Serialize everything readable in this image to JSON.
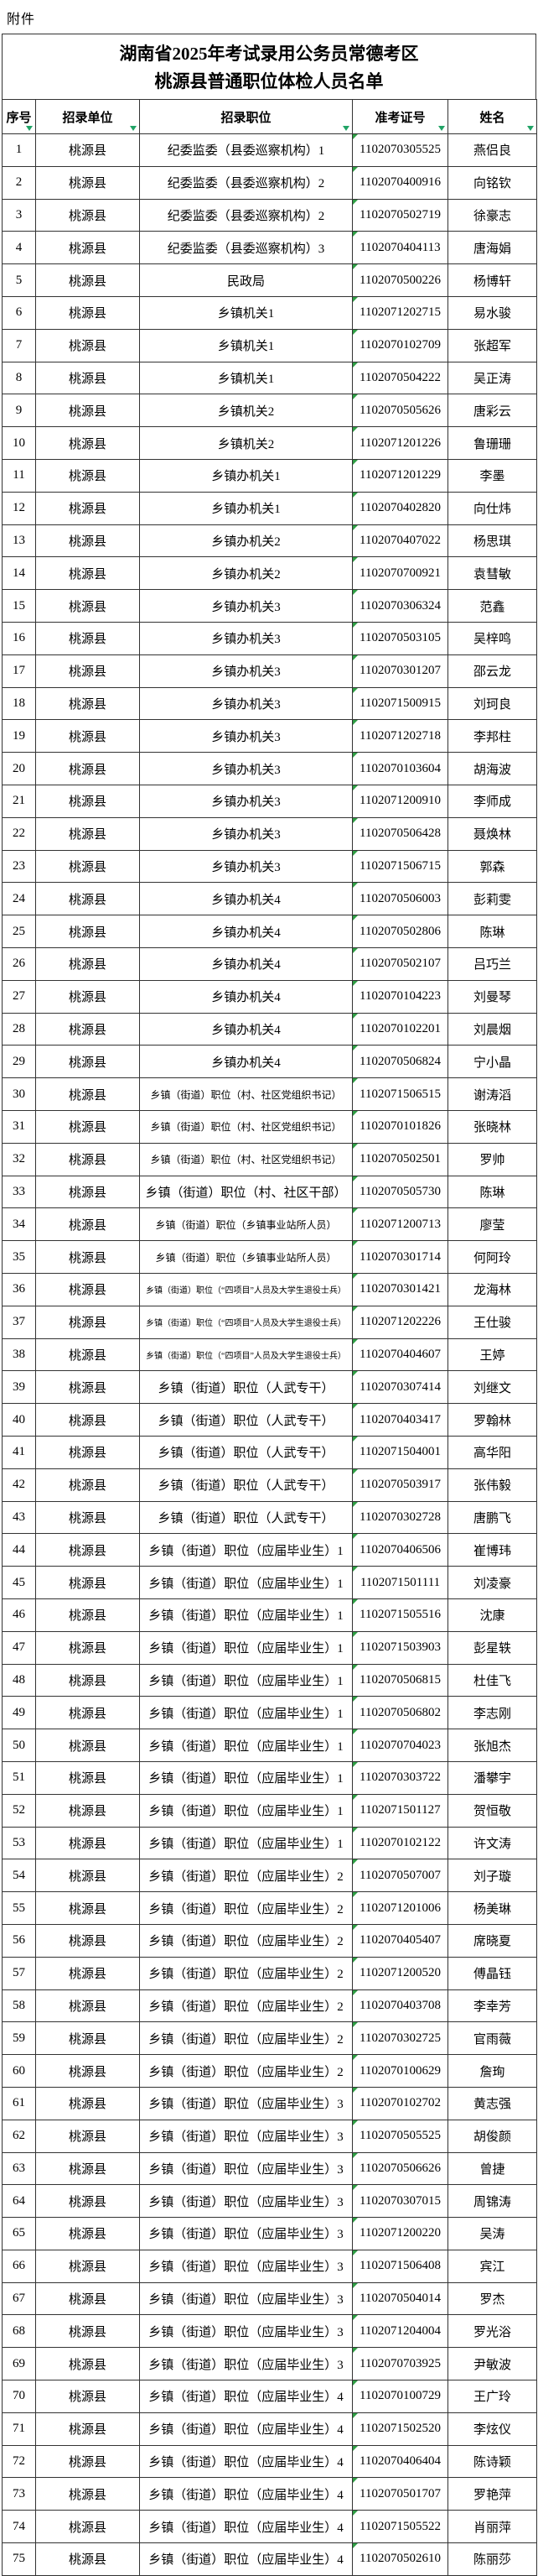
{
  "page": {
    "attachment_label": "附件"
  },
  "title": {
    "line1": "湖南省2025年考试录用公务员常德考区",
    "line2": "桃源县普通职位体检人员名单"
  },
  "colors": {
    "filter_arrow_green": "#21a366",
    "cell_corner_green": "#2f9e44",
    "grid_border": "#333333"
  },
  "table": {
    "columns": [
      {
        "key": "index",
        "label": "序号"
      },
      {
        "key": "unit",
        "label": "招录单位"
      },
      {
        "key": "position",
        "label": "招录职位"
      },
      {
        "key": "ticket",
        "label": "准考证号"
      },
      {
        "key": "name",
        "label": "姓名"
      }
    ],
    "small_rows": [
      30,
      31,
      32,
      34,
      35
    ],
    "xsmall_rows": [
      36,
      37,
      38
    ],
    "rows": [
      [
        1,
        "桃源县",
        "纪委监委（县委巡察机构）1",
        "1102070305525",
        "燕侣良"
      ],
      [
        2,
        "桃源县",
        "纪委监委（县委巡察机构）2",
        "1102070400916",
        "向铭钦"
      ],
      [
        3,
        "桃源县",
        "纪委监委（县委巡察机构）2",
        "1102070502719",
        "徐豪志"
      ],
      [
        4,
        "桃源县",
        "纪委监委（县委巡察机构）3",
        "1102070404113",
        "唐海娟"
      ],
      [
        5,
        "桃源县",
        "民政局",
        "1102070500226",
        "杨博轩"
      ],
      [
        6,
        "桃源县",
        "乡镇机关1",
        "1102071202715",
        "易水骏"
      ],
      [
        7,
        "桃源县",
        "乡镇机关1",
        "1102070102709",
        "张超军"
      ],
      [
        8,
        "桃源县",
        "乡镇机关1",
        "1102070504222",
        "吴正涛"
      ],
      [
        9,
        "桃源县",
        "乡镇机关2",
        "1102070505626",
        "唐彩云"
      ],
      [
        10,
        "桃源县",
        "乡镇机关2",
        "1102071201226",
        "鲁珊珊"
      ],
      [
        11,
        "桃源县",
        "乡镇办机关1",
        "1102071201229",
        "李墨"
      ],
      [
        12,
        "桃源县",
        "乡镇办机关1",
        "1102070402820",
        "向仕炜"
      ],
      [
        13,
        "桃源县",
        "乡镇办机关2",
        "1102070407022",
        "杨思琪"
      ],
      [
        14,
        "桃源县",
        "乡镇办机关2",
        "1102070700921",
        "袁彗敏"
      ],
      [
        15,
        "桃源县",
        "乡镇办机关3",
        "1102070306324",
        "范鑫"
      ],
      [
        16,
        "桃源县",
        "乡镇办机关3",
        "1102070503105",
        "吴梓鸣"
      ],
      [
        17,
        "桃源县",
        "乡镇办机关3",
        "1102070301207",
        "邵云龙"
      ],
      [
        18,
        "桃源县",
        "乡镇办机关3",
        "1102071500915",
        "刘珂良"
      ],
      [
        19,
        "桃源县",
        "乡镇办机关3",
        "1102071202718",
        "李邦柱"
      ],
      [
        20,
        "桃源县",
        "乡镇办机关3",
        "1102070103604",
        "胡海波"
      ],
      [
        21,
        "桃源县",
        "乡镇办机关3",
        "1102071200910",
        "李师成"
      ],
      [
        22,
        "桃源县",
        "乡镇办机关3",
        "1102070506428",
        "聂焕林"
      ],
      [
        23,
        "桃源县",
        "乡镇办机关3",
        "1102071506715",
        "郭森"
      ],
      [
        24,
        "桃源县",
        "乡镇办机关4",
        "1102070506003",
        "彭莉雯"
      ],
      [
        25,
        "桃源县",
        "乡镇办机关4",
        "1102070502806",
        "陈琳"
      ],
      [
        26,
        "桃源县",
        "乡镇办机关4",
        "1102070502107",
        "吕巧兰"
      ],
      [
        27,
        "桃源县",
        "乡镇办机关4",
        "1102070104223",
        "刘曼琴"
      ],
      [
        28,
        "桃源县",
        "乡镇办机关4",
        "1102070102201",
        "刘晨烟"
      ],
      [
        29,
        "桃源县",
        "乡镇办机关4",
        "1102070506824",
        "宁小晶"
      ],
      [
        30,
        "桃源县",
        "乡镇（街道）职位（村、社区党组织书记）",
        "1102071506515",
        "谢涛滔"
      ],
      [
        31,
        "桃源县",
        "乡镇（街道）职位（村、社区党组织书记）",
        "1102070101826",
        "张晓林"
      ],
      [
        32,
        "桃源县",
        "乡镇（街道）职位（村、社区党组织书记）",
        "1102070502501",
        "罗帅"
      ],
      [
        33,
        "桃源县",
        "乡镇（街道）职位（村、社区干部）",
        "1102070505730",
        "陈琳"
      ],
      [
        34,
        "桃源县",
        "乡镇（街道）职位（乡镇事业站所人员）",
        "1102071200713",
        "廖莹"
      ],
      [
        35,
        "桃源县",
        "乡镇（街道）职位（乡镇事业站所人员）",
        "1102070301714",
        "何阿玲"
      ],
      [
        36,
        "桃源县",
        "乡镇（街道）职位（“四项目”人员及大学生退役士兵）",
        "1102070301421",
        "龙海林"
      ],
      [
        37,
        "桃源县",
        "乡镇（街道）职位（“四项目”人员及大学生退役士兵）",
        "1102071202226",
        "王仕骏"
      ],
      [
        38,
        "桃源县",
        "乡镇（街道）职位（“四项目”人员及大学生退役士兵）",
        "1102070404607",
        "王婷"
      ],
      [
        39,
        "桃源县",
        "乡镇（街道）职位（人武专干）",
        "1102070307414",
        "刘继文"
      ],
      [
        40,
        "桃源县",
        "乡镇（街道）职位（人武专干）",
        "1102070403417",
        "罗翰林"
      ],
      [
        41,
        "桃源县",
        "乡镇（街道）职位（人武专干）",
        "1102071504001",
        "高华阳"
      ],
      [
        42,
        "桃源县",
        "乡镇（街道）职位（人武专干）",
        "1102070503917",
        "张伟毅"
      ],
      [
        43,
        "桃源县",
        "乡镇（街道）职位（人武专干）",
        "1102070302728",
        "唐鹏飞"
      ],
      [
        44,
        "桃源县",
        "乡镇（街道）职位（应届毕业生）1",
        "1102070406506",
        "崔博玮"
      ],
      [
        45,
        "桃源县",
        "乡镇（街道）职位（应届毕业生）1",
        "1102071501111",
        "刘凌豪"
      ],
      [
        46,
        "桃源县",
        "乡镇（街道）职位（应届毕业生）1",
        "1102071505516",
        "沈康"
      ],
      [
        47,
        "桃源县",
        "乡镇（街道）职位（应届毕业生）1",
        "1102071503903",
        "彭星轶"
      ],
      [
        48,
        "桃源县",
        "乡镇（街道）职位（应届毕业生）1",
        "1102070506815",
        "杜佳飞"
      ],
      [
        49,
        "桃源县",
        "乡镇（街道）职位（应届毕业生）1",
        "1102070506802",
        "李志刚"
      ],
      [
        50,
        "桃源县",
        "乡镇（街道）职位（应届毕业生）1",
        "1102070704023",
        "张旭杰"
      ],
      [
        51,
        "桃源县",
        "乡镇（街道）职位（应届毕业生）1",
        "1102070303722",
        "潘攀宇"
      ],
      [
        52,
        "桃源县",
        "乡镇（街道）职位（应届毕业生）1",
        "1102071501127",
        "贺恒敬"
      ],
      [
        53,
        "桃源县",
        "乡镇（街道）职位（应届毕业生）1",
        "1102070102122",
        "许文涛"
      ],
      [
        54,
        "桃源县",
        "乡镇（街道）职位（应届毕业生）2",
        "1102070507007",
        "刘子璇"
      ],
      [
        55,
        "桃源县",
        "乡镇（街道）职位（应届毕业生）2",
        "1102071201006",
        "杨美琳"
      ],
      [
        56,
        "桃源县",
        "乡镇（街道）职位（应届毕业生）2",
        "1102070405407",
        "席晓夏"
      ],
      [
        57,
        "桃源县",
        "乡镇（街道）职位（应届毕业生）2",
        "1102071200520",
        "傅晶钰"
      ],
      [
        58,
        "桃源县",
        "乡镇（街道）职位（应届毕业生）2",
        "1102070403708",
        "李幸芳"
      ],
      [
        59,
        "桃源县",
        "乡镇（街道）职位（应届毕业生）2",
        "1102070302725",
        "官雨薇"
      ],
      [
        60,
        "桃源县",
        "乡镇（街道）职位（应届毕业生）2",
        "1102070100629",
        "詹珣"
      ],
      [
        61,
        "桃源县",
        "乡镇（街道）职位（应届毕业生）3",
        "1102070102702",
        "黄志强"
      ],
      [
        62,
        "桃源县",
        "乡镇（街道）职位（应届毕业生）3",
        "1102070505525",
        "胡俊颜"
      ],
      [
        63,
        "桃源县",
        "乡镇（街道）职位（应届毕业生）3",
        "1102070506626",
        "曾捷"
      ],
      [
        64,
        "桃源县",
        "乡镇（街道）职位（应届毕业生）3",
        "1102070307015",
        "周锦涛"
      ],
      [
        65,
        "桃源县",
        "乡镇（街道）职位（应届毕业生）3",
        "1102071200220",
        "吴涛"
      ],
      [
        66,
        "桃源县",
        "乡镇（街道）职位（应届毕业生）3",
        "1102071506408",
        "宾江"
      ],
      [
        67,
        "桃源县",
        "乡镇（街道）职位（应届毕业生）3",
        "1102070504014",
        "罗杰"
      ],
      [
        68,
        "桃源县",
        "乡镇（街道）职位（应届毕业生）3",
        "1102071204004",
        "罗光浴"
      ],
      [
        69,
        "桃源县",
        "乡镇（街道）职位（应届毕业生）3",
        "1102070703925",
        "尹敏波"
      ],
      [
        70,
        "桃源县",
        "乡镇（街道）职位（应届毕业生）4",
        "1102070100729",
        "王广玲"
      ],
      [
        71,
        "桃源县",
        "乡镇（街道）职位（应届毕业生）4",
        "1102071502520",
        "李炫仪"
      ],
      [
        72,
        "桃源县",
        "乡镇（街道）职位（应届毕业生）4",
        "1102070406404",
        "陈诗颖"
      ],
      [
        73,
        "桃源县",
        "乡镇（街道）职位（应届毕业生）4",
        "1102070501707",
        "罗艳萍"
      ],
      [
        74,
        "桃源县",
        "乡镇（街道）职位（应届毕业生）4",
        "1102071505522",
        "肖丽萍"
      ],
      [
        75,
        "桃源县",
        "乡镇（街道）职位（应届毕业生）4",
        "1102070502610",
        "陈丽莎"
      ]
    ]
  }
}
